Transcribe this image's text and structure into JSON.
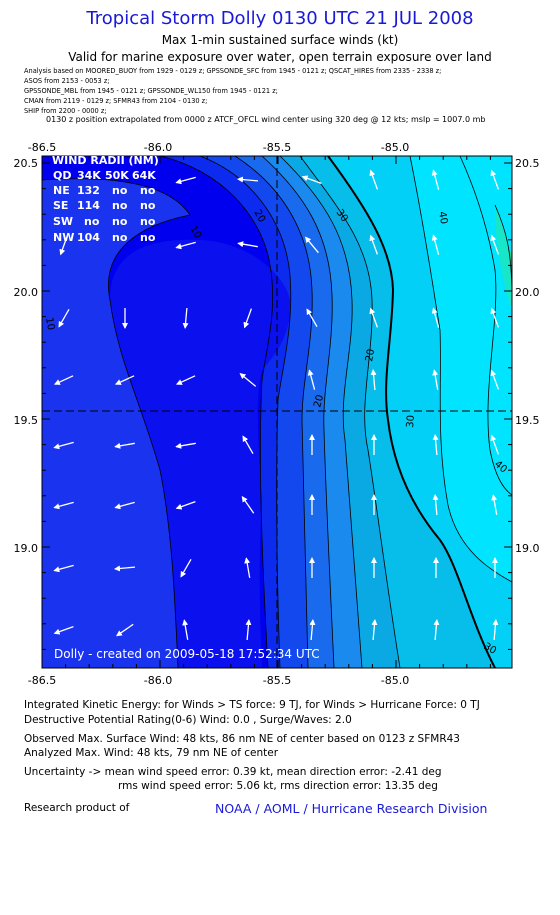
{
  "header": {
    "title": "Tropical Storm Dolly 0130 UTC 21 JUL 2008",
    "subtitle1": "Max 1-min sustained surface winds (kt)",
    "subtitle2": "Valid for marine exposure over water, open terrain exposure over land",
    "sources": [
      "Analysis based on   MOORED_BUOY from 1929 - 0129 z;  GPSSONDE_SFC from 1945 - 0121 z;  QSCAT_HIRES from 2335 - 2338 z;",
      "ASOS from  2153 - 0053 z;",
      "GPSSONDE_MBL from 1945 - 0121 z;  GPSSONDE_WL150 from 1945 - 0121 z;",
      "CMAN from  2119 - 0129 z;  SFMR43 from 2104 - 0130 z;",
      "SHIP from  2200 - 0000 z;"
    ],
    "position_note": "0130 z position extrapolated from 0000 z ATCF_OFCL wind center using 320 deg @ 12 kts; mslp = 1007.0 mb"
  },
  "map": {
    "lon_labels": [
      "-86.5",
      "-86.0",
      "-85.5",
      "-85.0"
    ],
    "lat_labels": [
      "20.5",
      "20.0",
      "19.5",
      "19.0"
    ],
    "contour_labels": [
      "10",
      "10",
      "20",
      "20",
      "20",
      "30",
      "30",
      "30",
      "40",
      "40"
    ],
    "credit": "Dolly - created on 2009-05-18 17:52:34 UTC",
    "center": {
      "lon": -85.5,
      "lat": 19.53
    },
    "colors": [
      "#0000ee",
      "#0f33ee",
      "#1855ee",
      "#1a78ee",
      "#139ae6",
      "#07bde9",
      "#00d6f2",
      "#00e4ff",
      "#02f0ee",
      "#27d58f"
    ]
  },
  "wind_radii": {
    "title": "WIND RADII (NM)",
    "headers": [
      "QD",
      "34K",
      "50K",
      "64K"
    ],
    "rows": [
      [
        "NE",
        "132",
        "no",
        "no"
      ],
      [
        "SE",
        "114",
        "no",
        "no"
      ],
      [
        "SW",
        "no",
        "no",
        "no"
      ],
      [
        "NW",
        "104",
        "no",
        "no"
      ]
    ]
  },
  "stats": {
    "ike": "Integrated Kinetic Energy:  for Winds > TS force: 9 TJ,  for Winds > Hurricane Force: 0 TJ",
    "dpr": "Destructive Potential Rating(0-6)   Wind: 0.0 , Surge/Waves: 2.0",
    "obs_max": "Observed Max. Surface Wind: 48 kts, 86 nm NE of center based on 0123 z SFMR43",
    "analyzed_max": "Analyzed Max. Wind: 48 kts, 79 nm NE of center",
    "uncertainty1": "Uncertainty -> mean wind speed error: 0.39 kt,   mean direction error:  -2.41 deg",
    "uncertainty2": "rms wind speed error: 5.06 kt,   rms direction error: 13.35 deg",
    "research": "Research product of",
    "noaa": "NOAA / AOML / Hurricane Research Division"
  }
}
